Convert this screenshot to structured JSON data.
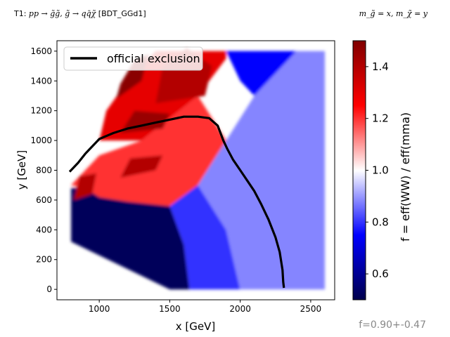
{
  "header": {
    "left_prefix": "T1: ",
    "left_process": "pp → g̃g̃, g̃ → qq̄χ̃",
    "left_tag": " [BDT_GGd1]",
    "right_mapping": "m_g̃ = x, m_χ̃ = y"
  },
  "footer": {
    "fit_text": "f=0.90+-0.47"
  },
  "colors": {
    "low": "#00004c",
    "mid": "#ffffff",
    "high": "#800000",
    "line": "#000000",
    "footer_text": "#888888"
  },
  "chart_data": {
    "type": "heatmap",
    "xlabel": "x [GeV]",
    "ylabel": "y [GeV]",
    "xlim": [
      700,
      2670
    ],
    "ylim": [
      -70,
      1670
    ],
    "xticks": [
      1000,
      1500,
      2000,
      2500
    ],
    "yticks": [
      0,
      200,
      400,
      600,
      800,
      1000,
      1200,
      1400,
      1600
    ],
    "colorbar": {
      "label": "f = eff(WW) / eff(mma)",
      "range": [
        0.5,
        1.5
      ],
      "ticks": [
        0.6,
        0.8,
        1.0,
        1.2,
        1.4
      ],
      "colormap": "seismic"
    },
    "legend": {
      "position": "top-left",
      "entries": [
        "official exclusion"
      ]
    },
    "heat_regions": [
      {
        "points": [
          [
            800,
            680
          ],
          [
            800,
            320
          ],
          [
            1500,
            0
          ],
          [
            1640,
            0
          ],
          [
            1600,
            300
          ],
          [
            1500,
            560
          ],
          [
            1200,
            590
          ],
          [
            1000,
            620
          ],
          [
            900,
            680
          ]
        ],
        "value": 0.52
      },
      {
        "points": [
          [
            1640,
            0
          ],
          [
            2000,
            0
          ],
          [
            1900,
            400
          ],
          [
            1700,
            700
          ],
          [
            1500,
            560
          ],
          [
            1600,
            300
          ]
        ],
        "value": 0.8
      },
      {
        "points": [
          [
            2000,
            0
          ],
          [
            2600,
            0
          ],
          [
            2600,
            1600
          ],
          [
            2400,
            1600
          ],
          [
            2100,
            1300
          ],
          [
            1900,
            1000
          ],
          [
            1700,
            700
          ],
          [
            1900,
            400
          ]
        ],
        "value": 0.88
      },
      {
        "points": [
          [
            900,
            680
          ],
          [
            1000,
            620
          ],
          [
            1200,
            590
          ],
          [
            1500,
            560
          ],
          [
            1700,
            700
          ],
          [
            1900,
            1000
          ],
          [
            1700,
            1300
          ],
          [
            1300,
            1000
          ],
          [
            1000,
            900
          ],
          [
            800,
            700
          ]
        ],
        "value": 1.2
      },
      {
        "points": [
          [
            1000,
            1000
          ],
          [
            1300,
            1000
          ],
          [
            1700,
            1300
          ],
          [
            1900,
            1550
          ],
          [
            1900,
            1600
          ],
          [
            1400,
            1600
          ],
          [
            1200,
            1400
          ],
          [
            1050,
            1200
          ]
        ],
        "value": 1.3
      },
      {
        "points": [
          [
            1400,
            1600
          ],
          [
            1900,
            1600
          ],
          [
            2000,
            1400
          ],
          [
            2100,
            1300
          ],
          [
            2400,
            1600
          ]
        ],
        "value": 0.75
      },
      {
        "points": [
          [
            1120,
            1280
          ],
          [
            1300,
            1400
          ],
          [
            1350,
            1580
          ],
          [
            1250,
            1540
          ],
          [
            1150,
            1380
          ]
        ],
        "value": 1.48
      },
      {
        "points": [
          [
            1400,
            1250
          ],
          [
            1750,
            1300
          ],
          [
            1800,
            1500
          ],
          [
            1620,
            1620
          ],
          [
            1450,
            1500
          ]
        ],
        "value": 1.4
      },
      {
        "points": [
          [
            1150,
            1050
          ],
          [
            1450,
            1080
          ],
          [
            1500,
            1180
          ],
          [
            1250,
            1200
          ]
        ],
        "value": 1.45
      },
      {
        "points": [
          [
            820,
            600
          ],
          [
            950,
            640
          ],
          [
            980,
            780
          ],
          [
            860,
            760
          ]
        ],
        "value": 1.4
      },
      {
        "points": [
          [
            1150,
            750
          ],
          [
            1400,
            800
          ],
          [
            1450,
            900
          ],
          [
            1220,
            880
          ]
        ],
        "value": 1.4
      }
    ],
    "series": [
      {
        "name": "official exclusion",
        "x": [
          790,
          850,
          900,
          950,
          1000,
          1050,
          1100,
          1200,
          1300,
          1400,
          1500,
          1600,
          1700,
          1780,
          1840,
          1880,
          1910,
          1950,
          2000,
          2050,
          2100,
          2150,
          2200,
          2250,
          2280,
          2300,
          2305,
          2310
        ],
        "y": [
          790,
          850,
          910,
          960,
          1010,
          1030,
          1050,
          1080,
          1100,
          1120,
          1140,
          1160,
          1160,
          1150,
          1100,
          1000,
          940,
          870,
          800,
          730,
          660,
          570,
          470,
          350,
          250,
          130,
          50,
          10
        ]
      }
    ]
  }
}
